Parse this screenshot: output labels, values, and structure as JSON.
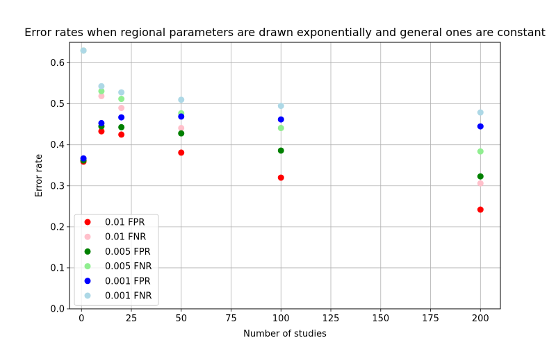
{
  "chart_data": {
    "type": "scatter",
    "title": "Error rates when regional parameters are drawn exponentially and general ones are constant",
    "xlabel": "Number of studies",
    "ylabel": "Error rate",
    "xlim": [
      -6,
      210
    ],
    "ylim": [
      0,
      0.65
    ],
    "xticks": [
      0,
      25,
      50,
      75,
      100,
      125,
      150,
      175,
      200
    ],
    "yticks": [
      0.0,
      0.1,
      0.2,
      0.3,
      0.4,
      0.5,
      0.6
    ],
    "grid": true,
    "legend_position": "lower-left",
    "series": [
      {
        "name": "0.01 FPR",
        "color": "#ff0000",
        "points": [
          [
            1,
            0.359
          ],
          [
            10,
            0.433
          ],
          [
            20,
            0.425
          ],
          [
            50,
            0.381
          ],
          [
            100,
            0.32
          ],
          [
            200,
            0.242
          ]
        ]
      },
      {
        "name": "0.01 FNR",
        "color": "#ffc0cb",
        "points": [
          [
            1,
            0.63
          ],
          [
            10,
            0.519
          ],
          [
            20,
            0.49
          ],
          [
            50,
            0.441
          ],
          [
            100,
            0.441
          ],
          [
            200,
            0.306
          ]
        ]
      },
      {
        "name": "0.005 FPR",
        "color": "#008000",
        "points": [
          [
            1,
            0.362
          ],
          [
            10,
            0.445
          ],
          [
            20,
            0.443
          ],
          [
            50,
            0.428
          ],
          [
            100,
            0.386
          ],
          [
            200,
            0.323
          ]
        ]
      },
      {
        "name": "0.005 FNR",
        "color": "#90ee90",
        "points": [
          [
            1,
            0.63
          ],
          [
            10,
            0.531
          ],
          [
            20,
            0.512
          ],
          [
            50,
            0.477
          ],
          [
            100,
            0.441
          ],
          [
            200,
            0.384
          ]
        ]
      },
      {
        "name": "0.001 FPR",
        "color": "#0000ff",
        "points": [
          [
            1,
            0.367
          ],
          [
            10,
            0.453
          ],
          [
            20,
            0.467
          ],
          [
            50,
            0.469
          ],
          [
            100,
            0.462
          ],
          [
            200,
            0.445
          ]
        ]
      },
      {
        "name": "0.001 FNR",
        "color": "#add8e6",
        "points": [
          [
            1,
            0.63
          ],
          [
            10,
            0.543
          ],
          [
            20,
            0.528
          ],
          [
            50,
            0.51
          ],
          [
            100,
            0.495
          ],
          [
            200,
            0.479
          ]
        ]
      }
    ]
  }
}
